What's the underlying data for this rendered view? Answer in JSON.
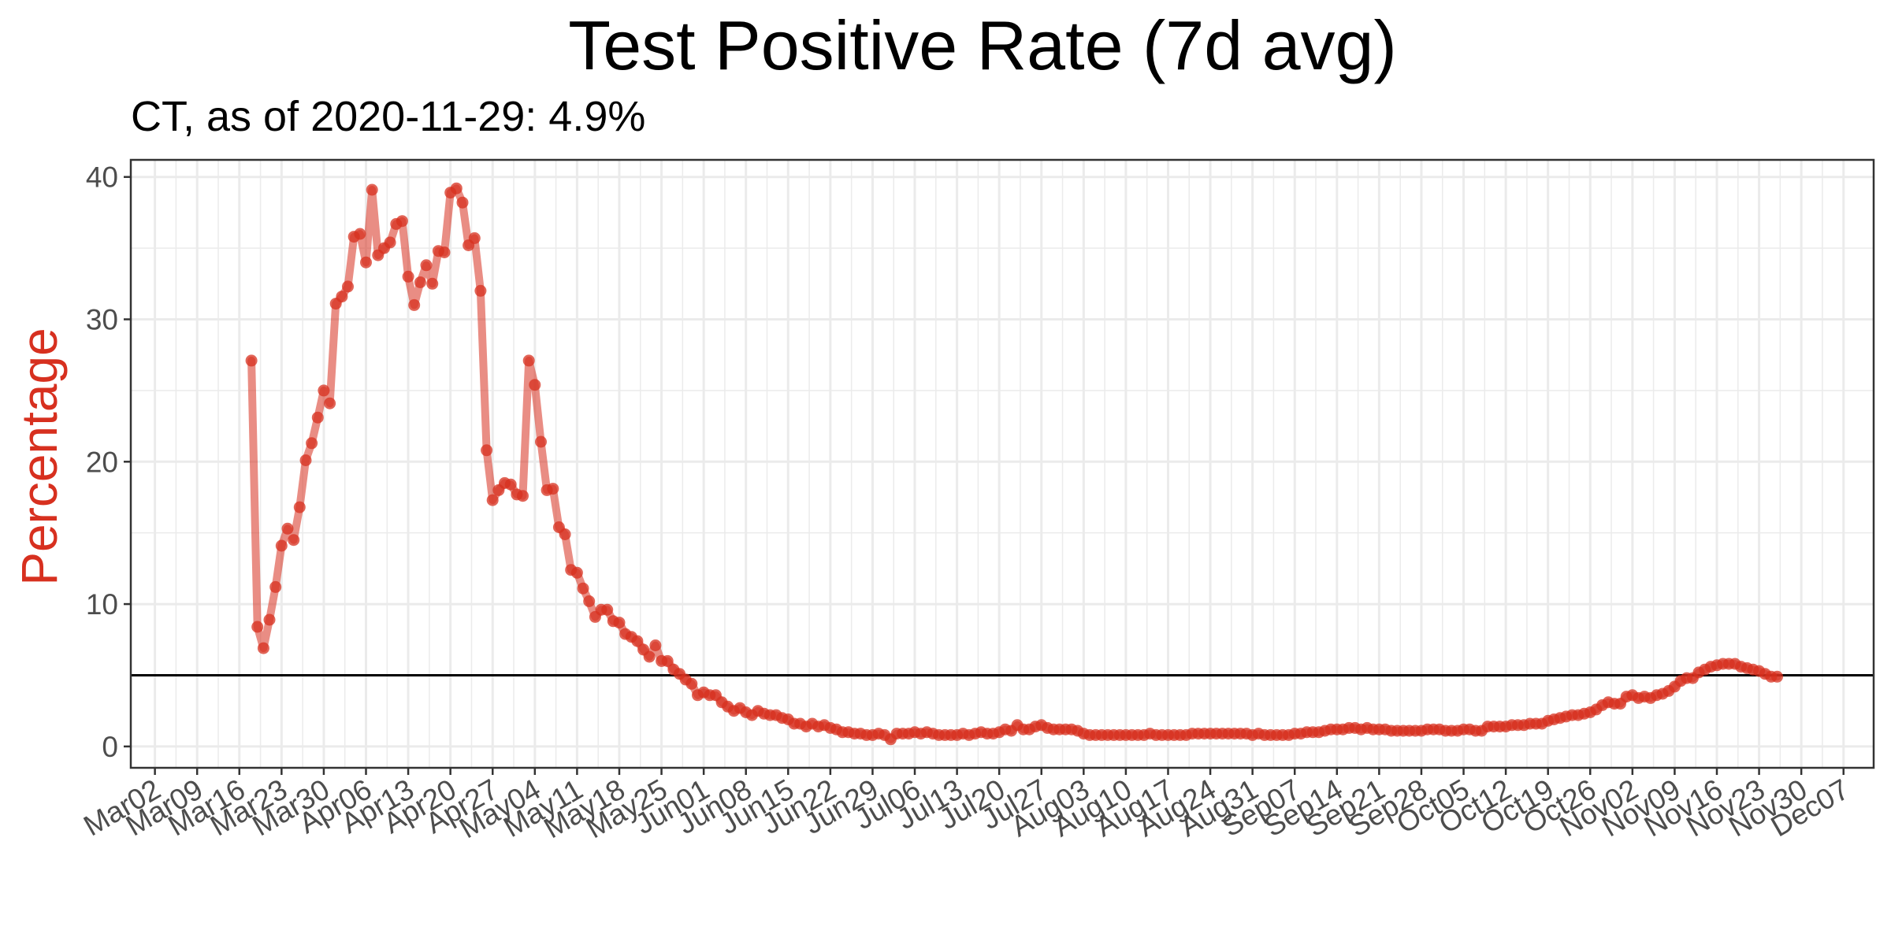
{
  "chart_data": {
    "type": "line",
    "title": "Test Positive Rate (7d avg)",
    "subtitle": "CT, as of 2020-11-29:  4.9%",
    "xlabel": "",
    "ylabel": "Percentage",
    "ylim": [
      -1.5,
      41.2
    ],
    "yticks": [
      0,
      10,
      20,
      30,
      40
    ],
    "xlim": [
      "2020-02-27",
      "2020-12-12"
    ],
    "x_tick_labels": [
      {
        "date": "2020-03-02",
        "label": "Mar02"
      },
      {
        "date": "2020-03-09",
        "label": "Mar09"
      },
      {
        "date": "2020-03-16",
        "label": "Mar16"
      },
      {
        "date": "2020-03-23",
        "label": "Mar23"
      },
      {
        "date": "2020-03-30",
        "label": "Mar30"
      },
      {
        "date": "2020-04-06",
        "label": "Apr06"
      },
      {
        "date": "2020-04-13",
        "label": "Apr13"
      },
      {
        "date": "2020-04-20",
        "label": "Apr20"
      },
      {
        "date": "2020-04-27",
        "label": "Apr27"
      },
      {
        "date": "2020-05-04",
        "label": "May04"
      },
      {
        "date": "2020-05-11",
        "label": "May11"
      },
      {
        "date": "2020-05-18",
        "label": "May18"
      },
      {
        "date": "2020-05-25",
        "label": "May25"
      },
      {
        "date": "2020-06-01",
        "label": "Jun01"
      },
      {
        "date": "2020-06-08",
        "label": "Jun08"
      },
      {
        "date": "2020-06-15",
        "label": "Jun15"
      },
      {
        "date": "2020-06-22",
        "label": "Jun22"
      },
      {
        "date": "2020-06-29",
        "label": "Jun29"
      },
      {
        "date": "2020-07-06",
        "label": "Jul06"
      },
      {
        "date": "2020-07-13",
        "label": "Jul13"
      },
      {
        "date": "2020-07-20",
        "label": "Jul20"
      },
      {
        "date": "2020-07-27",
        "label": "Jul27"
      },
      {
        "date": "2020-08-03",
        "label": "Aug03"
      },
      {
        "date": "2020-08-10",
        "label": "Aug10"
      },
      {
        "date": "2020-08-17",
        "label": "Aug17"
      },
      {
        "date": "2020-08-24",
        "label": "Aug24"
      },
      {
        "date": "2020-08-31",
        "label": "Aug31"
      },
      {
        "date": "2020-09-07",
        "label": "Sep07"
      },
      {
        "date": "2020-09-14",
        "label": "Sep14"
      },
      {
        "date": "2020-09-21",
        "label": "Sep21"
      },
      {
        "date": "2020-09-28",
        "label": "Sep28"
      },
      {
        "date": "2020-10-05",
        "label": "Oct05"
      },
      {
        "date": "2020-10-12",
        "label": "Oct12"
      },
      {
        "date": "2020-10-19",
        "label": "Oct19"
      },
      {
        "date": "2020-10-26",
        "label": "Oct26"
      },
      {
        "date": "2020-11-02",
        "label": "Nov02"
      },
      {
        "date": "2020-11-09",
        "label": "Nov09"
      },
      {
        "date": "2020-11-16",
        "label": "Nov16"
      },
      {
        "date": "2020-11-23",
        "label": "Nov23"
      },
      {
        "date": "2020-11-30",
        "label": "Nov30"
      },
      {
        "date": "2020-12-07",
        "label": "Dec07"
      }
    ],
    "reference_line": {
      "y": 5
    },
    "grid": true,
    "colors": {
      "series": "#d7301f",
      "ylabel": "#d7301f",
      "reference_line": "#000000",
      "grid": "#ebebeb"
    },
    "series": [
      {
        "start_date": "2020-03-18",
        "values": [
          27.1,
          8.4,
          6.9,
          8.9,
          11.2,
          14.1,
          15.3,
          14.5,
          16.8,
          20.1,
          21.3,
          23.1,
          25.0,
          24.1,
          31.1,
          31.6,
          32.3,
          35.8,
          36.0,
          34.0,
          39.1,
          34.5,
          35.0,
          35.4,
          36.7,
          36.9,
          33.0,
          31.0,
          32.6,
          33.8,
          32.5,
          34.8,
          34.7,
          38.9,
          39.2,
          38.2,
          35.2,
          35.7,
          32.0,
          20.8,
          17.3,
          18.0,
          18.5,
          18.4,
          17.7,
          17.6,
          27.1,
          25.4,
          21.4,
          18.0,
          18.1,
          15.4,
          14.9,
          12.4,
          12.2,
          11.1,
          10.2,
          9.1,
          9.6,
          9.6,
          8.8,
          8.7,
          7.9,
          7.7,
          7.4,
          6.8,
          6.3,
          7.1,
          6.0,
          6.0,
          5.4,
          5.1,
          4.7,
          4.4,
          3.6,
          3.8,
          3.6,
          3.6,
          3.1,
          2.8,
          2.5,
          2.7,
          2.4,
          2.2,
          2.5,
          2.3,
          2.2,
          2.2,
          2.0,
          1.9,
          1.6,
          1.6,
          1.4,
          1.6,
          1.4,
          1.5,
          1.3,
          1.2,
          1.0,
          1.0,
          0.9,
          0.9,
          0.8,
          0.8,
          0.9,
          0.8,
          0.5,
          0.9,
          0.9,
          0.9,
          1.0,
          0.9,
          1.0,
          0.9,
          0.8,
          0.8,
          0.8,
          0.8,
          0.9,
          0.8,
          0.9,
          1.0,
          0.9,
          0.9,
          1.0,
          1.2,
          1.1,
          1.5,
          1.2,
          1.2,
          1.4,
          1.5,
          1.3,
          1.2,
          1.2,
          1.2,
          1.2,
          1.1,
          0.9,
          0.8,
          0.8,
          0.8,
          0.8,
          0.8,
          0.8,
          0.8,
          0.8,
          0.8,
          0.8,
          0.9,
          0.8,
          0.8,
          0.8,
          0.8,
          0.8,
          0.8,
          0.9,
          0.9,
          0.9,
          0.9,
          0.9,
          0.9,
          0.9,
          0.9,
          0.9,
          0.9,
          0.8,
          0.9,
          0.8,
          0.8,
          0.8,
          0.8,
          0.8,
          0.9,
          0.9,
          1.0,
          1.0,
          1.0,
          1.1,
          1.2,
          1.2,
          1.2,
          1.3,
          1.3,
          1.2,
          1.3,
          1.2,
          1.2,
          1.2,
          1.1,
          1.1,
          1.1,
          1.1,
          1.1,
          1.1,
          1.2,
          1.2,
          1.2,
          1.1,
          1.1,
          1.1,
          1.2,
          1.2,
          1.1,
          1.1,
          1.4,
          1.4,
          1.4,
          1.4,
          1.5,
          1.5,
          1.5,
          1.6,
          1.6,
          1.6,
          1.8,
          1.9,
          2.0,
          2.1,
          2.2,
          2.2,
          2.3,
          2.4,
          2.6,
          2.9,
          3.1,
          3.0,
          3.0,
          3.5,
          3.6,
          3.4,
          3.5,
          3.4,
          3.6,
          3.7,
          3.9,
          4.2,
          4.6,
          4.8,
          4.8,
          5.2,
          5.4,
          5.6,
          5.7,
          5.8,
          5.8,
          5.8,
          5.6,
          5.5,
          5.4,
          5.3,
          5.1,
          4.9,
          4.9
        ]
      }
    ]
  }
}
